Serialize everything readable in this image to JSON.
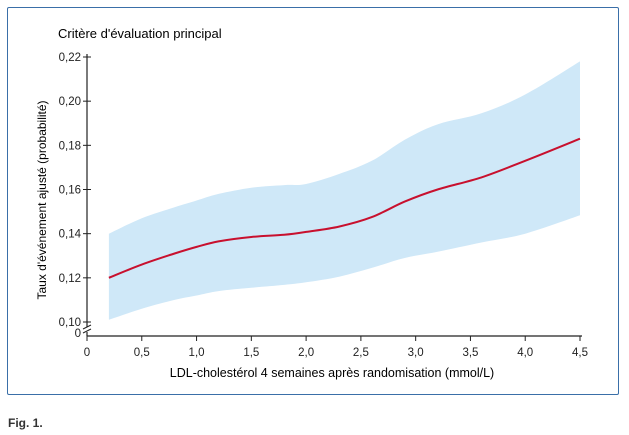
{
  "figure": {
    "caption": "Fig. 1."
  },
  "chart_data": {
    "type": "line",
    "title": "Critère d'évaluation principal",
    "xlabel": "LDL-cholestérol 4 semaines après randomisation (mmol/L)",
    "ylabel": "Taux d'événement ajusté (probabilité)",
    "xlim": [
      0,
      4.5
    ],
    "ylim": [
      0.1,
      0.22
    ],
    "x_ticks": [
      0,
      0.5,
      1.0,
      1.5,
      2.0,
      2.5,
      3.0,
      3.5,
      4.0,
      4.5
    ],
    "x_tick_labels": [
      "0",
      "0,5",
      "1,0",
      "1,5",
      "2,0",
      "2,5",
      "3,0",
      "3,5",
      "4,0",
      "4,5"
    ],
    "y_ticks": [
      0.1,
      0.12,
      0.14,
      0.16,
      0.18,
      0.2,
      0.22
    ],
    "y_tick_labels": [
      "0,10",
      "0,12",
      "0,14",
      "0,16",
      "0,18",
      "0,20",
      "0,22"
    ],
    "y_zero_label": "0",
    "axis_break": true,
    "grid": false,
    "series": [
      {
        "x": [
          0.2,
          0.5,
          0.8,
          1.0,
          1.2,
          1.5,
          1.8,
          2.0,
          2.3,
          2.6,
          2.9,
          3.2,
          3.6,
          4.0,
          4.5
        ],
        "y": [
          0.12,
          0.126,
          0.131,
          0.134,
          0.1365,
          0.1385,
          0.1395,
          0.1408,
          0.1432,
          0.1475,
          0.1545,
          0.16,
          0.1655,
          0.173,
          0.183
        ],
        "lower": [
          0.101,
          0.106,
          0.11,
          0.112,
          0.114,
          0.1155,
          0.1168,
          0.118,
          0.1205,
          0.1245,
          0.129,
          0.1318,
          0.136,
          0.14,
          0.1483
        ],
        "upper": [
          0.14,
          0.147,
          0.152,
          0.155,
          0.158,
          0.1608,
          0.162,
          0.1625,
          0.167,
          0.173,
          0.1825,
          0.1895,
          0.1945,
          0.203,
          0.218
        ]
      }
    ],
    "colors": {
      "line": "#c8102e",
      "band": "#cfe8f8",
      "axis": "#222222",
      "frame": "#3a6fa8"
    }
  }
}
